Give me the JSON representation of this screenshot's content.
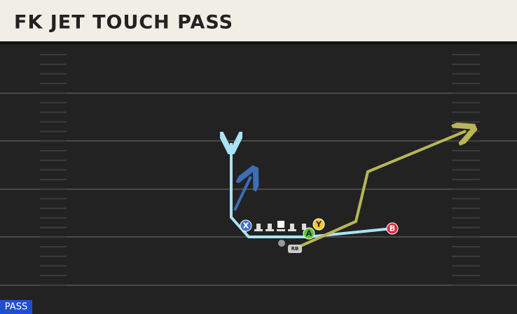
{
  "header": {
    "title": "FK JET TOUCH PASS"
  },
  "players": [
    {
      "label": "X"
    },
    {
      "label": "Y"
    },
    {
      "label": "A"
    },
    {
      "label": "B"
    },
    {
      "label": "RB"
    }
  ],
  "footer": {
    "mode": "PASS"
  }
}
